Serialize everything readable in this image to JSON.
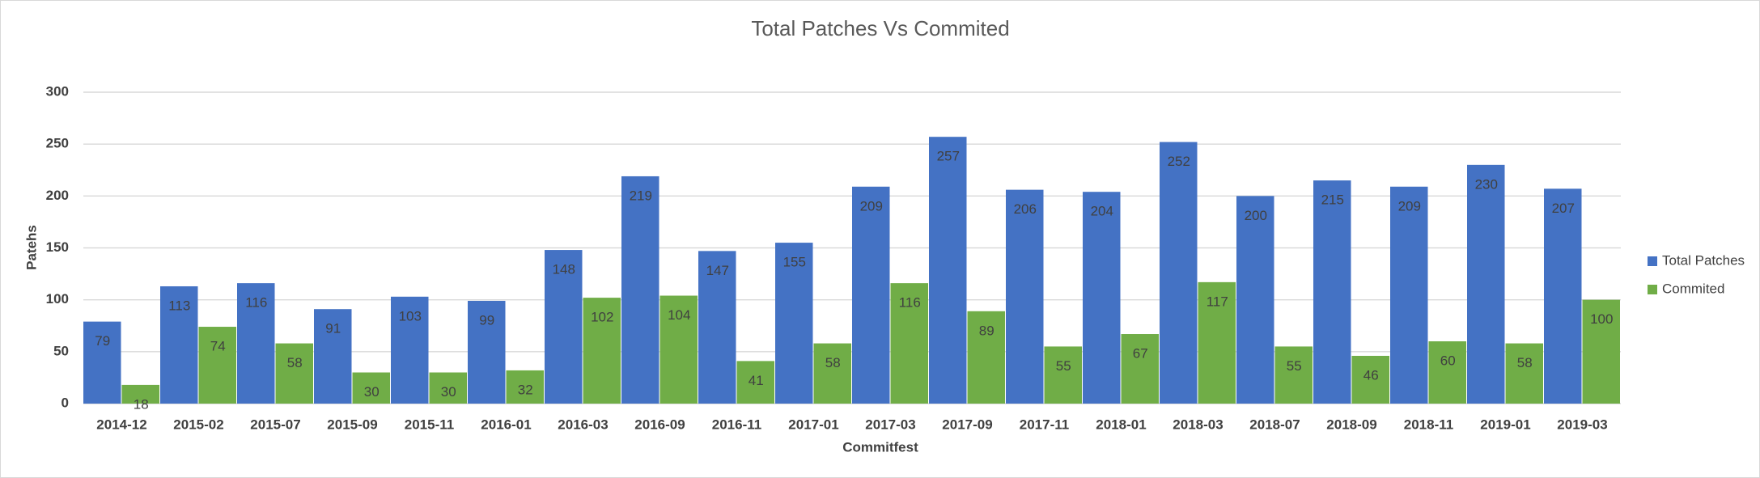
{
  "chart_data": {
    "type": "bar",
    "title": "Total Patches Vs Commited",
    "xlabel": "Commitfest",
    "ylabel": "Patehs",
    "categories": [
      "2014-12",
      "2015-02",
      "2015-07",
      "2015-09",
      "2015-11",
      "2016-01",
      "2016-03",
      "2016-09",
      "2016-11",
      "2017-01",
      "2017-03",
      "2017-09",
      "2017-11",
      "2018-01",
      "2018-03",
      "2018-07",
      "2018-09",
      "2018-11",
      "2019-01",
      "2019-03"
    ],
    "series": [
      {
        "name": "Total Patches",
        "color": "#4472c4",
        "values": [
          79,
          113,
          116,
          91,
          103,
          99,
          148,
          219,
          147,
          155,
          209,
          257,
          206,
          204,
          252,
          200,
          215,
          209,
          230,
          207
        ]
      },
      {
        "name": "Commited",
        "color": "#70ad47",
        "values": [
          18,
          74,
          58,
          30,
          30,
          32,
          102,
          104,
          41,
          58,
          116,
          89,
          55,
          67,
          117,
          55,
          46,
          60,
          58,
          100
        ]
      }
    ],
    "ylim": [
      0,
      300
    ],
    "yticks": [
      0,
      50,
      100,
      150,
      200,
      250,
      300
    ],
    "grid": true,
    "legend": "right"
  }
}
